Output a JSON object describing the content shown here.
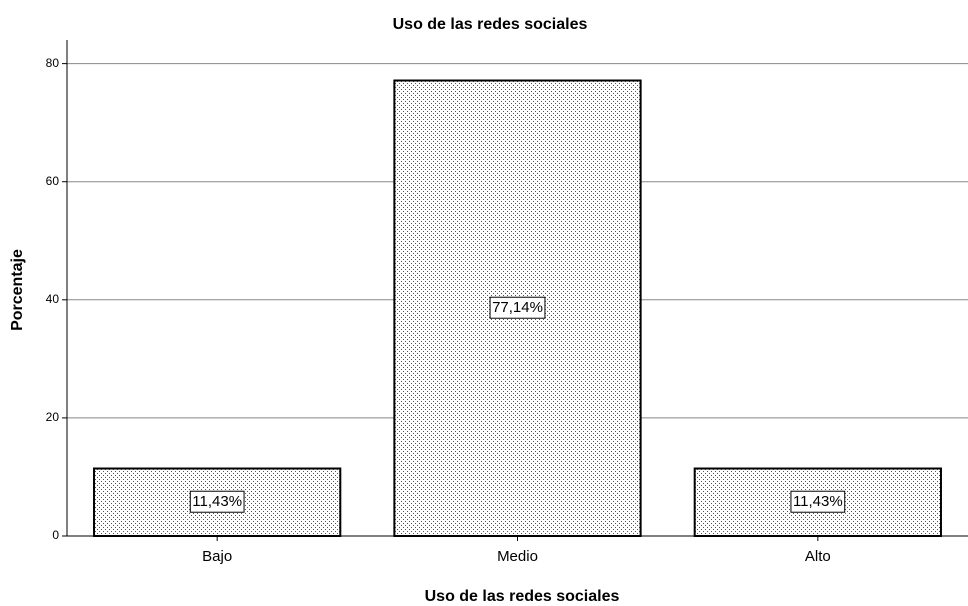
{
  "chart_data": {
    "type": "bar",
    "title": "Uso de las redes sociales",
    "x_label": "Uso de las redes sociales",
    "y_label": "Porcentaje",
    "categories": [
      "Bajo",
      "Medio",
      "Alto"
    ],
    "values": [
      11.43,
      77.14,
      11.43
    ],
    "value_labels": [
      "11,43%",
      "77,14%",
      "11,43%"
    ],
    "color": "#ffffff",
    "ylim": [
      0,
      84
    ],
    "yticks": [
      0,
      20,
      40,
      60,
      80
    ],
    "grid": true
  }
}
